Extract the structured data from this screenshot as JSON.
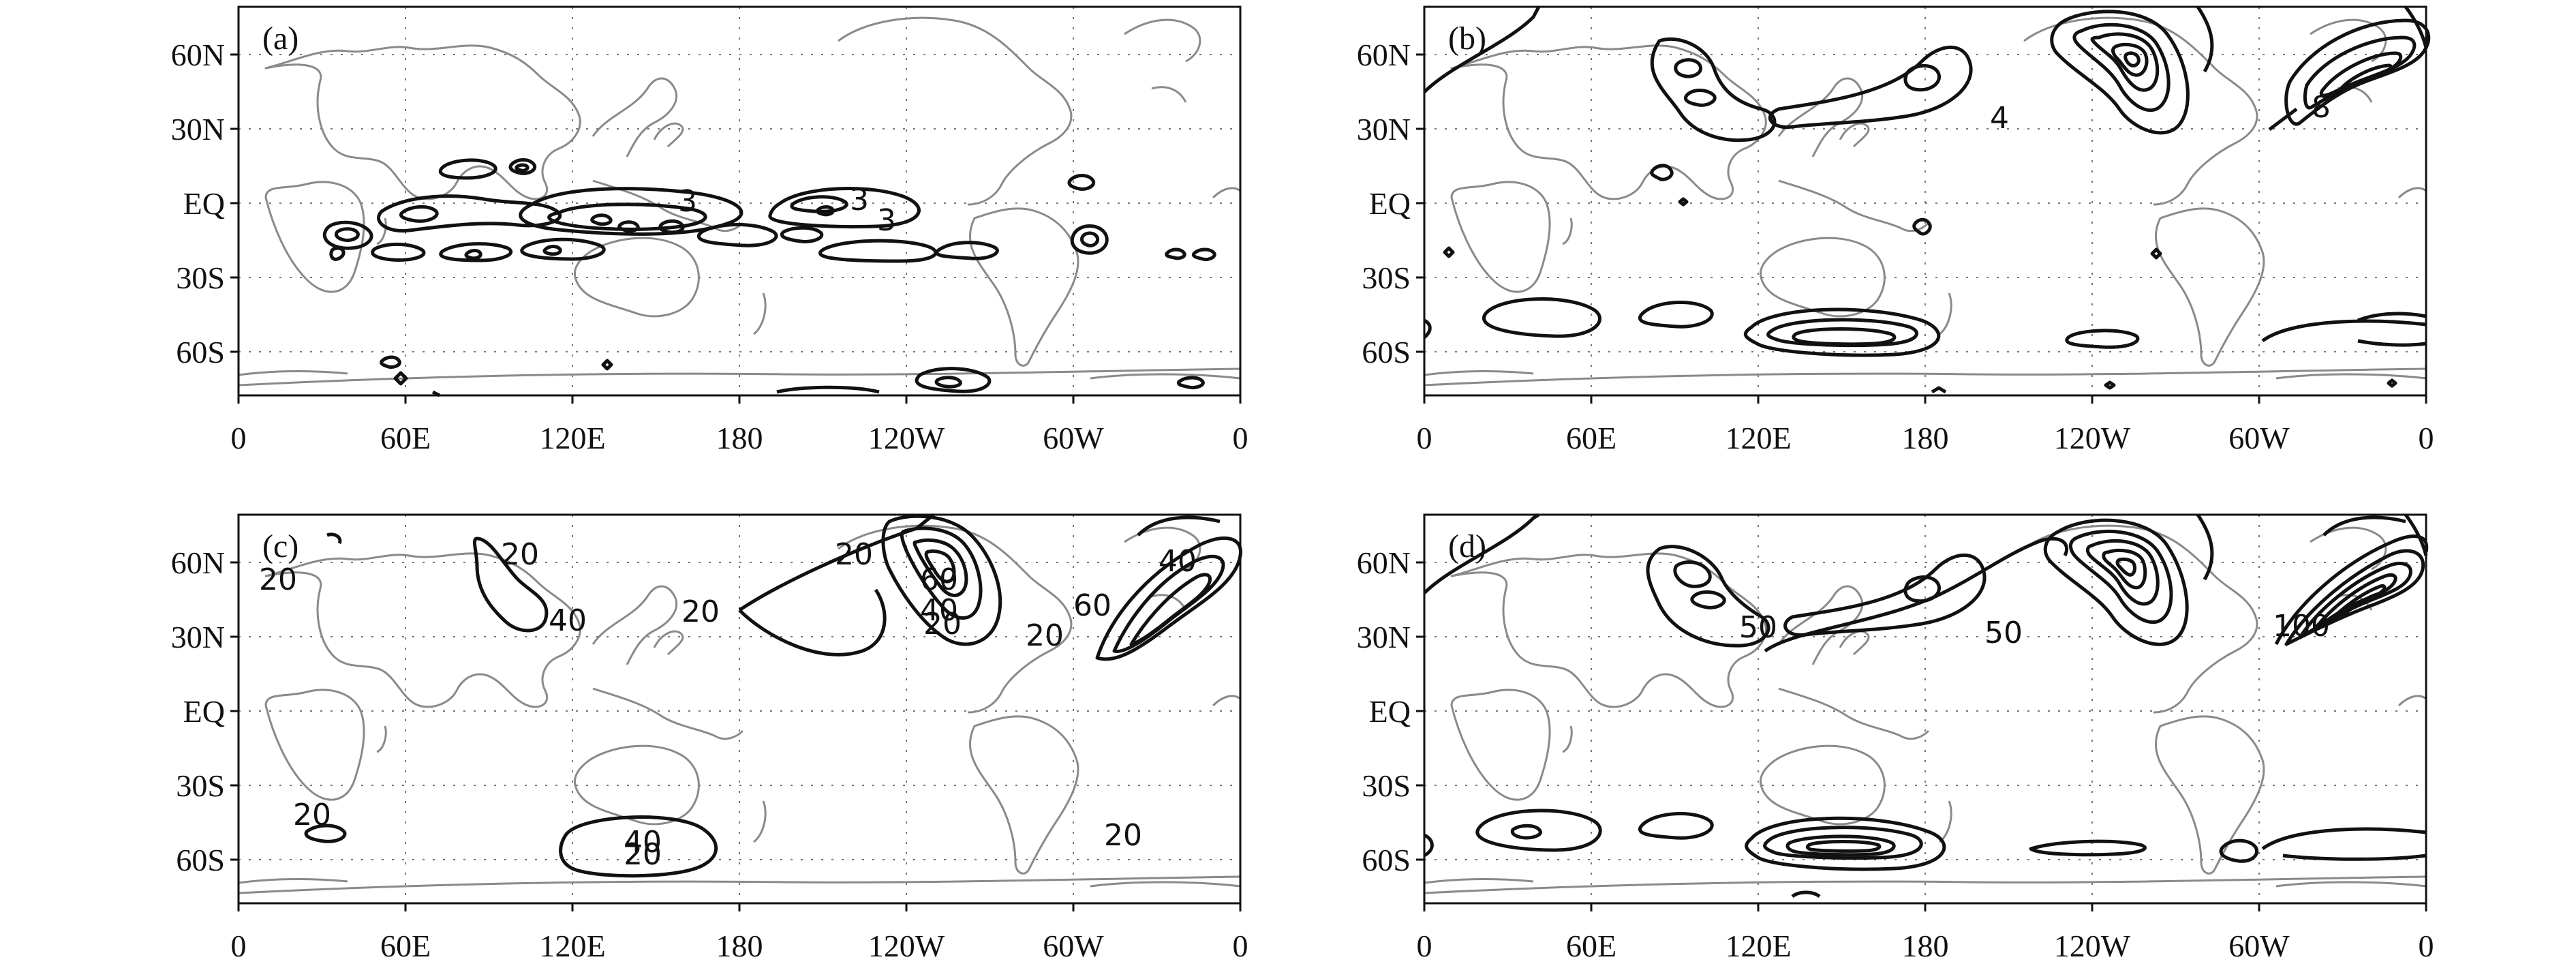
{
  "figure": {
    "panels": [
      {
        "id": "a",
        "label": "(a)",
        "contour_labels": [
          "3",
          "3",
          "3"
        ]
      },
      {
        "id": "b",
        "label": "(b)",
        "contour_labels": [
          "4",
          "8"
        ]
      },
      {
        "id": "c",
        "label": "(c)",
        "contour_labels": [
          "20",
          "20",
          "40",
          "20",
          "20",
          "60",
          "40",
          "20",
          "40",
          "60",
          "20",
          "20",
          "40",
          "20",
          "20"
        ]
      },
      {
        "id": "d",
        "label": "(d)",
        "contour_labels": [
          "50",
          "50",
          "100"
        ]
      }
    ],
    "lat_labels": [
      "60N",
      "30N",
      "EQ",
      "30S",
      "60S"
    ],
    "lon_labels": [
      "0",
      "60E",
      "120E",
      "180",
      "120W",
      "60W",
      "0"
    ],
    "colors": {
      "contour": "#111111",
      "coastline": "#8a8a8a",
      "grid": "#777777"
    }
  }
}
